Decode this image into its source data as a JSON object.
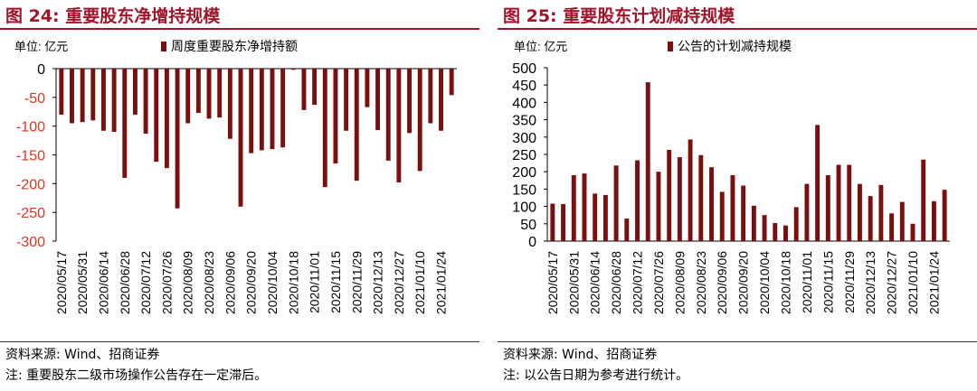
{
  "colors": {
    "title": "#A0152A",
    "bar": "#7B0E0E",
    "negative_tick": "#E0341F",
    "axis": "#000000"
  },
  "panels": [
    {
      "title": "图 24:  重要股东净增持规模",
      "unit_label": "单位: 亿元",
      "source": "资料来源: Wind、招商证券",
      "note": "注: 重要股东二级市场操作公告存在一定滞后。"
    },
    {
      "title": "图 25:  重要股东计划减持规模",
      "unit_label": "单位: 亿元",
      "source": "资料来源: Wind、招商证券",
      "note": "注: 以公告日期为参考进行统计。"
    }
  ],
  "chart_data": [
    {
      "type": "bar",
      "series": [
        {
          "name": "周度重要股东净增持额",
          "values": [
            -80,
            -95,
            -93,
            -90,
            -108,
            -110,
            -190,
            -80,
            -113,
            -162,
            -173,
            -243,
            -95,
            -77,
            -87,
            -85,
            -122,
            -240,
            -147,
            -142,
            -140,
            -137,
            -2,
            -72,
            -63,
            -206,
            -165,
            -108,
            -195,
            -67,
            -107,
            -160,
            -198,
            -112,
            -178,
            -95,
            -108,
            -46
          ]
        }
      ],
      "x_tick_labels": [
        "2020/05/17",
        "2020/05/31",
        "2020/06/14",
        "2020/06/28",
        "2020/07/12",
        "2020/07/26",
        "2020/08/09",
        "2020/08/23",
        "2020/09/06",
        "2020/09/20",
        "2020/10/04",
        "2020/10/18",
        "2020/11/01",
        "2020/11/15",
        "2020/11/29",
        "2020/12/13",
        "2020/12/27",
        "2021/01/10",
        "2021/01/24"
      ],
      "ylim": [
        -300,
        0
      ],
      "yticks": [
        0,
        -50,
        -100,
        -150,
        -200,
        -250,
        -300
      ],
      "legend_position": "top",
      "grid": false
    },
    {
      "type": "bar",
      "series": [
        {
          "name": "公告的计划减持规模",
          "values": [
            108,
            107,
            190,
            195,
            137,
            133,
            218,
            65,
            233,
            458,
            200,
            263,
            242,
            293,
            248,
            213,
            142,
            190,
            160,
            102,
            75,
            52,
            45,
            98,
            165,
            335,
            190,
            220,
            220,
            165,
            130,
            162,
            80,
            113,
            50,
            235,
            115,
            148
          ]
        }
      ],
      "x_tick_labels": [
        "2020/05/17",
        "2020/05/31",
        "2020/06/14",
        "2020/06/28",
        "2020/07/12",
        "2020/07/26",
        "2020/08/09",
        "2020/08/23",
        "2020/09/06",
        "2020/09/20",
        "2020/10/04",
        "2020/10/18",
        "2020/11/01",
        "2020/11/15",
        "2020/11/29",
        "2020/12/13",
        "2020/12/27",
        "2021/01/10",
        "2021/01/24"
      ],
      "ylim": [
        0,
        500
      ],
      "yticks": [
        500,
        450,
        400,
        350,
        300,
        250,
        200,
        150,
        100,
        50,
        0
      ],
      "legend_position": "top",
      "grid": false
    }
  ]
}
